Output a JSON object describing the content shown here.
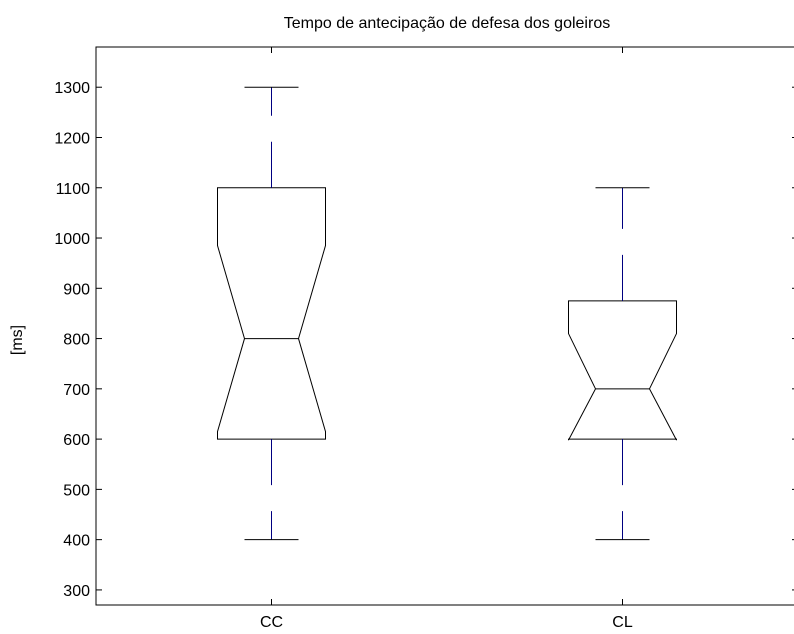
{
  "chart_data": {
    "type": "boxplot",
    "title": "Tempo de antecipação de defesa dos goleiros",
    "xlabel": "",
    "ylabel": "[ms]",
    "ylim": [
      270,
      1380
    ],
    "yticks": [
      300,
      400,
      500,
      600,
      700,
      800,
      900,
      1000,
      1100,
      1200,
      1300
    ],
    "notched": true,
    "grid": false,
    "categories": [
      "CC",
      "CL"
    ],
    "boxes": [
      {
        "label": "CC",
        "min": 400,
        "q1": 600,
        "median": 800,
        "q3": 1100,
        "max": 1300,
        "notch_low": 615,
        "notch_high": 985
      },
      {
        "label": "CL",
        "min": 400,
        "q1": 600,
        "median": 700,
        "q3": 875,
        "max": 1100,
        "notch_low": 598,
        "notch_high": 810
      }
    ],
    "colors": {
      "box": "#000000",
      "whisker": "#000080",
      "median": "#000000"
    }
  }
}
